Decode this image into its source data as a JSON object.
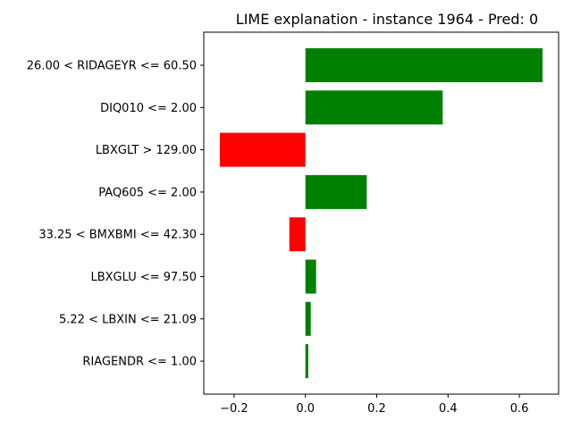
{
  "chart_data": {
    "type": "bar",
    "orientation": "horizontal",
    "title": "LIME explanation - instance 1964 - Pred: 0",
    "xlabel": "",
    "ylabel": "",
    "categories": [
      "26.00 < RIDAGEYR <= 60.50",
      "DIQ010 <= 2.00",
      "LBXGLT > 129.00",
      "PAQ605 <= 2.00",
      "33.25 < BMXBMI <= 42.30",
      "LBXGLU <= 97.50",
      "5.22 < LBXIN <= 21.09",
      "RIAGENDR <= 1.00"
    ],
    "values": [
      0.665,
      0.385,
      -0.24,
      0.172,
      -0.045,
      0.03,
      0.015,
      0.008
    ],
    "xlim": [
      -0.285,
      0.71
    ],
    "xticks": [
      -0.2,
      0.0,
      0.2,
      0.4,
      0.6
    ],
    "xtick_labels": [
      "−0.2",
      "0.0",
      "0.2",
      "0.4",
      "0.6"
    ],
    "grid": false,
    "colors": {
      "positive": "#008000",
      "negative": "#ff0000"
    }
  }
}
